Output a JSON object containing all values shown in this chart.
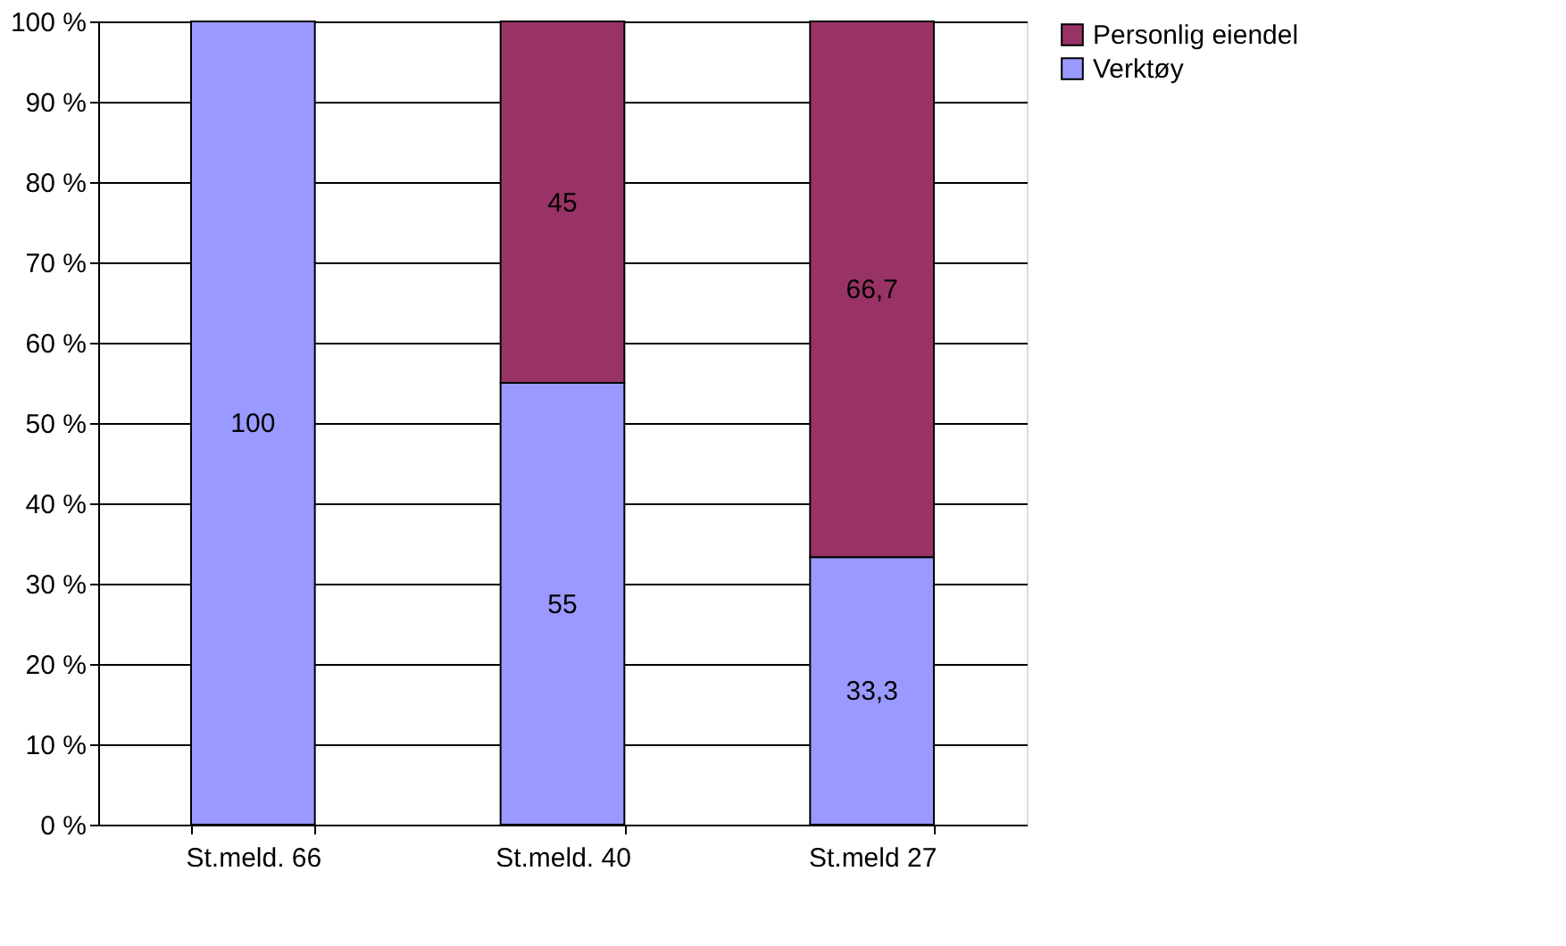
{
  "chart_data": {
    "type": "bar",
    "stacked": true,
    "categories": [
      "St.meld. 66",
      "St.meld. 40",
      "St.meld 27"
    ],
    "series": [
      {
        "name": "Verktøy",
        "color": "#9999ff",
        "values": [
          100,
          55,
          33.3
        ],
        "value_labels": [
          "100",
          "55",
          "33,3"
        ]
      },
      {
        "name": "Personlig eiendel",
        "color": "#993366",
        "values": [
          null,
          45,
          66.7
        ],
        "value_labels": [
          null,
          "45",
          "66,7"
        ]
      }
    ],
    "ylim": [
      0,
      100
    ],
    "yticks": [
      {
        "value": 0,
        "label": "0 %"
      },
      {
        "value": 10,
        "label": "10 %"
      },
      {
        "value": 20,
        "label": "20 %"
      },
      {
        "value": 30,
        "label": "30 %"
      },
      {
        "value": 40,
        "label": "40 %"
      },
      {
        "value": 50,
        "label": "50 %"
      },
      {
        "value": 60,
        "label": "60 %"
      },
      {
        "value": 70,
        "label": "70 %"
      },
      {
        "value": 80,
        "label": "80 %"
      },
      {
        "value": 90,
        "label": "90 %"
      },
      {
        "value": 100,
        "label": "100 %"
      }
    ],
    "grid": "y",
    "legend": "right"
  }
}
